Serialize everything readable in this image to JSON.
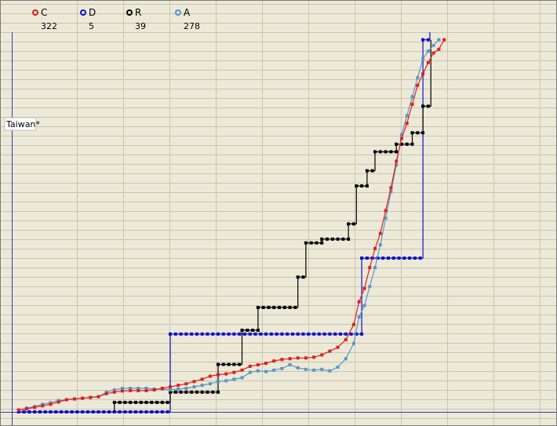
{
  "chart_data": {
    "type": "line",
    "title": "",
    "xlabel": "",
    "ylabel": "",
    "xlim": [
      0,
      100
    ],
    "ylim": [
      0,
      100
    ],
    "grid": true,
    "legend_placement": "top-left",
    "country_tag": "Taiwan*",
    "colors": {
      "background": "#ece9d8",
      "grid": "#c8c7ac",
      "axis": "#3a3aa8",
      "C": "#dd2020",
      "D": "#1010cc",
      "R": "#000000",
      "A": "#5b95c8"
    },
    "series": [
      {
        "name": "C",
        "count": "322",
        "color": "#dd2020",
        "points": [
          [
            1,
            0.5
          ],
          [
            2.5,
            0.8
          ],
          [
            4,
            1.2
          ],
          [
            5.5,
            1.6
          ],
          [
            7,
            2.0
          ],
          [
            8.5,
            2.6
          ],
          [
            10,
            3.2
          ],
          [
            11.5,
            3.4
          ],
          [
            13,
            3.6
          ],
          [
            14.5,
            3.8
          ],
          [
            16,
            4.0
          ],
          [
            17.5,
            4.8
          ],
          [
            19,
            5.2
          ],
          [
            20.5,
            5.5
          ],
          [
            22,
            5.6
          ],
          [
            23.5,
            5.6
          ],
          [
            25,
            5.6
          ],
          [
            26.5,
            5.8
          ],
          [
            28,
            6.2
          ],
          [
            29.5,
            6.6
          ],
          [
            31,
            7.0
          ],
          [
            32.5,
            7.4
          ],
          [
            34,
            8.0
          ],
          [
            35.5,
            8.6
          ],
          [
            37,
            9.4
          ],
          [
            38.5,
            9.8
          ],
          [
            40,
            10.0
          ],
          [
            41.5,
            10.4
          ],
          [
            43,
            11.0
          ],
          [
            44.5,
            12.0
          ],
          [
            46,
            12.4
          ],
          [
            47.5,
            12.8
          ],
          [
            49,
            13.4
          ],
          [
            50.5,
            13.8
          ],
          [
            52,
            14.0
          ],
          [
            53.5,
            14.2
          ],
          [
            55,
            14.2
          ],
          [
            56.5,
            14.4
          ],
          [
            58,
            15.0
          ],
          [
            59.5,
            16.0
          ],
          [
            61,
            17.0
          ],
          [
            62.5,
            19.0
          ],
          [
            64,
            23.0
          ],
          [
            65,
            29.0
          ],
          [
            66,
            32.5
          ],
          [
            67,
            38.0
          ],
          [
            68,
            43.0
          ],
          [
            69,
            47.0
          ],
          [
            70,
            53.0
          ],
          [
            71,
            59.0
          ],
          [
            72,
            66.0
          ],
          [
            73,
            72.0
          ],
          [
            74,
            76.0
          ],
          [
            75,
            81.0
          ],
          [
            76,
            86.0
          ],
          [
            77,
            89.0
          ],
          [
            78,
            92.0
          ],
          [
            79,
            94.5
          ],
          [
            80,
            95.5
          ],
          [
            81,
            98.0
          ]
        ]
      },
      {
        "name": "D",
        "count": "5",
        "color": "#1010cc",
        "points": [
          [
            1,
            0
          ],
          [
            29.5,
            0
          ],
          [
            29.5,
            20.5
          ],
          [
            65.5,
            20.5
          ],
          [
            65.5,
            40.5
          ],
          [
            77,
            40.5
          ],
          [
            77,
            98
          ],
          [
            78.3,
            98
          ],
          [
            78.3,
            100
          ]
        ]
      },
      {
        "name": "R",
        "count": "39",
        "color": "#000000",
        "points": [
          [
            19,
            0
          ],
          [
            19,
            2.5
          ],
          [
            29.5,
            2.5
          ],
          [
            29.5,
            5.2
          ],
          [
            38.5,
            5.2
          ],
          [
            38.5,
            12.5
          ],
          [
            43,
            12.5
          ],
          [
            43,
            21.5
          ],
          [
            46,
            21.5
          ],
          [
            46,
            27.5
          ],
          [
            53.5,
            27.5
          ],
          [
            53.5,
            35.5
          ],
          [
            55,
            35.5
          ],
          [
            55,
            44.5
          ],
          [
            58,
            44.5
          ],
          [
            58,
            45.5
          ],
          [
            63,
            45.5
          ],
          [
            63,
            49.5
          ],
          [
            64.5,
            49.5
          ],
          [
            64.5,
            59.5
          ],
          [
            66.5,
            59.5
          ],
          [
            66.5,
            63.5
          ],
          [
            68,
            63.5
          ],
          [
            68,
            68.5
          ],
          [
            72,
            68.5
          ],
          [
            72,
            70.5
          ],
          [
            75,
            70.5
          ],
          [
            75,
            73.5
          ],
          [
            77,
            73.5
          ],
          [
            77,
            80.5
          ],
          [
            78.5,
            80.5
          ],
          [
            78.5,
            98
          ]
        ]
      },
      {
        "name": "A",
        "count": "278",
        "color": "#5b95c8",
        "points": [
          [
            1,
            0.5
          ],
          [
            2.5,
            1.0
          ],
          [
            4,
            1.4
          ],
          [
            5.5,
            2.0
          ],
          [
            7,
            2.4
          ],
          [
            8.5,
            3.0
          ],
          [
            10,
            3.2
          ],
          [
            11.5,
            3.4
          ],
          [
            13,
            3.6
          ],
          [
            14.5,
            3.8
          ],
          [
            16,
            4.0
          ],
          [
            17.5,
            5.2
          ],
          [
            19,
            5.8
          ],
          [
            20.5,
            6.2
          ],
          [
            22,
            6.2
          ],
          [
            23.5,
            6.2
          ],
          [
            25,
            6.2
          ],
          [
            26.5,
            6.0
          ],
          [
            28,
            6.0
          ],
          [
            29.5,
            5.8
          ],
          [
            31,
            6.0
          ],
          [
            32.5,
            6.2
          ],
          [
            34,
            6.6
          ],
          [
            35.5,
            7.0
          ],
          [
            37,
            7.4
          ],
          [
            38.5,
            8.0
          ],
          [
            40,
            8.2
          ],
          [
            41.5,
            8.6
          ],
          [
            43,
            9.0
          ],
          [
            44.5,
            10.4
          ],
          [
            46,
            10.8
          ],
          [
            47.5,
            10.6
          ],
          [
            49,
            11.0
          ],
          [
            50.5,
            11.4
          ],
          [
            52,
            12.4
          ],
          [
            53.5,
            11.6
          ],
          [
            55,
            11.2
          ],
          [
            56.5,
            11.0
          ],
          [
            58,
            11.2
          ],
          [
            59.5,
            10.8
          ],
          [
            61,
            11.8
          ],
          [
            62.5,
            14.0
          ],
          [
            64,
            18.0
          ],
          [
            65,
            25.0
          ],
          [
            66,
            28.0
          ],
          [
            67,
            33.0
          ],
          [
            68,
            38.0
          ],
          [
            69,
            44.0
          ],
          [
            70,
            51.0
          ],
          [
            71,
            58.0
          ],
          [
            72,
            65.0
          ],
          [
            73,
            73.0
          ],
          [
            74,
            78.0
          ],
          [
            75,
            83.0
          ],
          [
            76,
            88.0
          ],
          [
            77,
            93.0
          ],
          [
            78,
            95.0
          ],
          [
            79,
            96.5
          ],
          [
            80,
            98.0
          ]
        ]
      }
    ]
  }
}
